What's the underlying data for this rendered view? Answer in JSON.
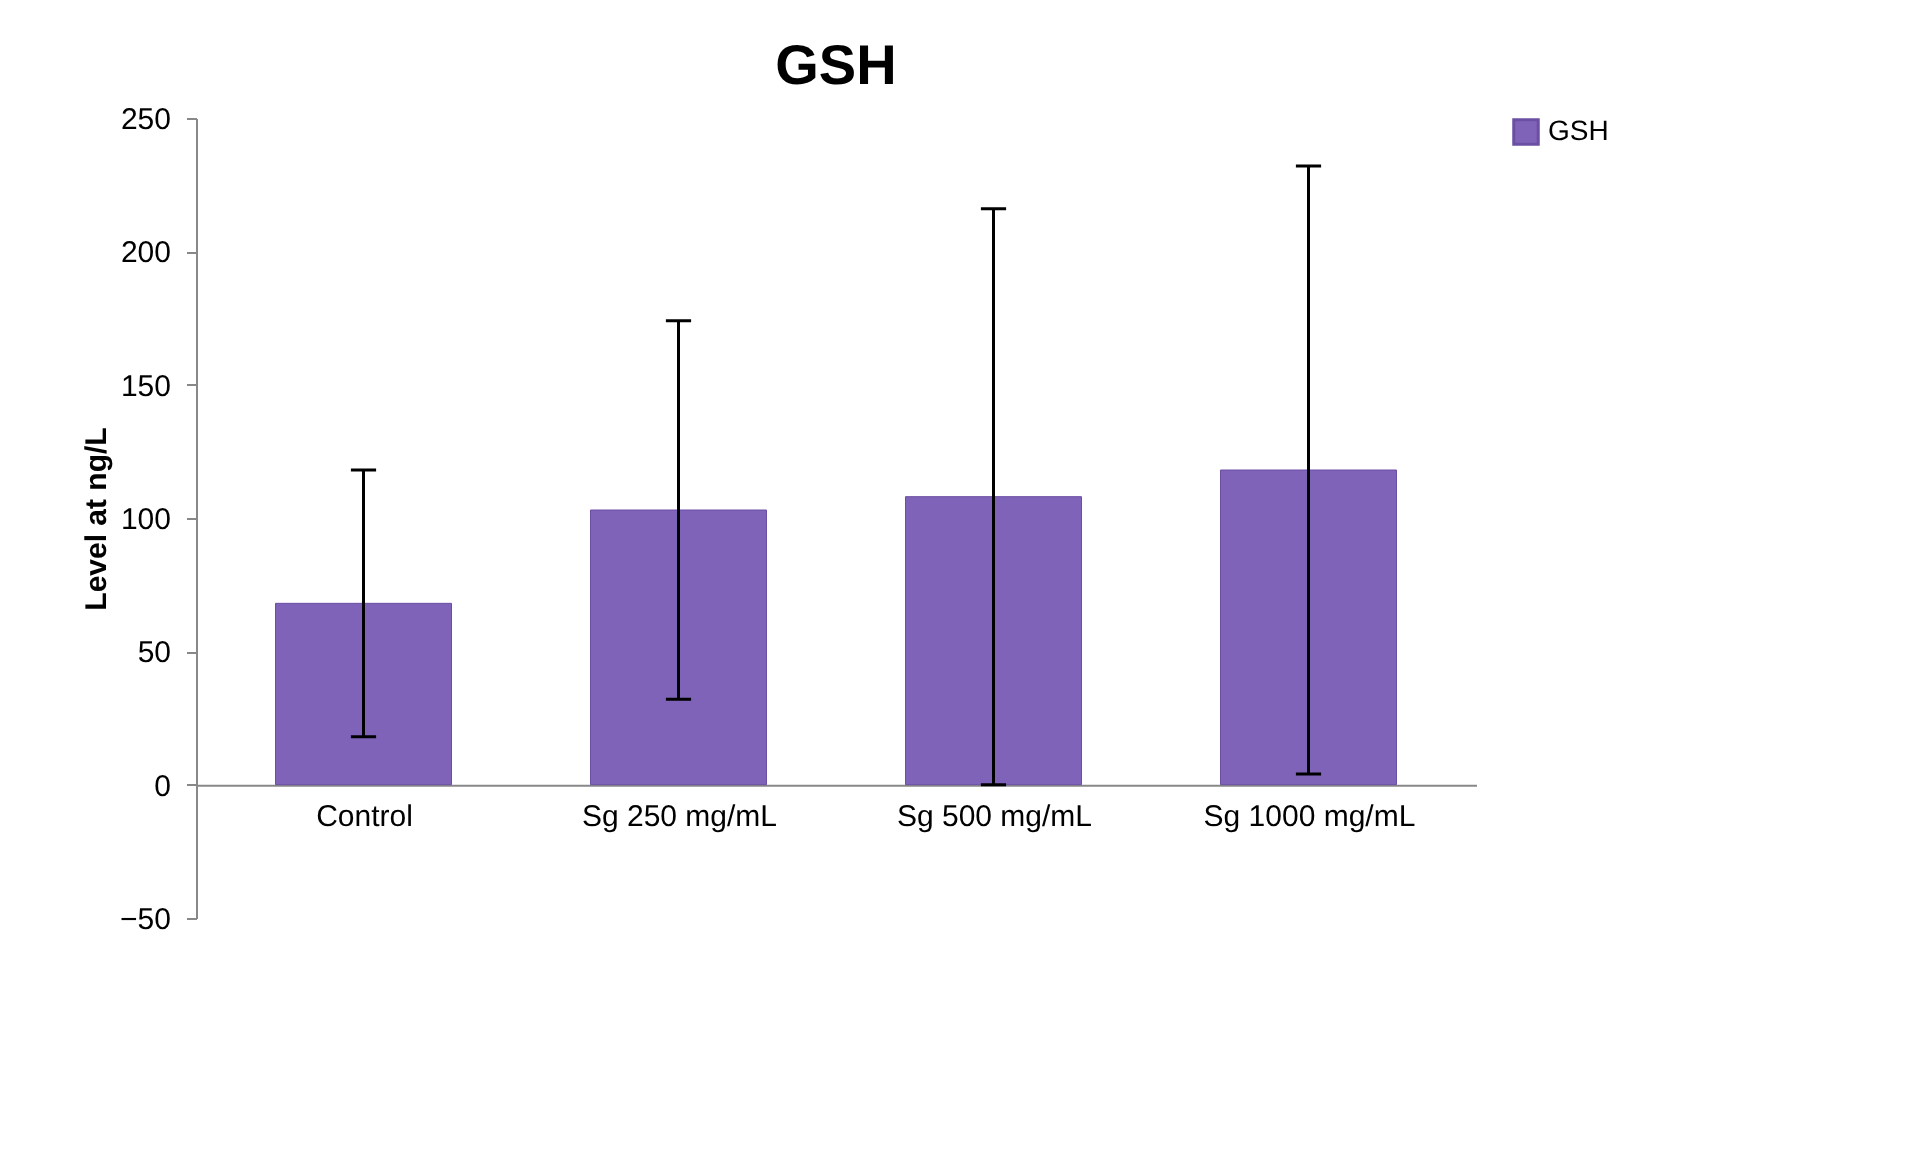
{
  "chart_data": {
    "type": "bar",
    "title": "GSH",
    "ylabel": "Level at ng/L",
    "categories": [
      "Control",
      "Sg 250 mg/mL",
      "Sg 500 mg/mL",
      "Sg 1000 mg/mL"
    ],
    "series": [
      {
        "name": "GSH",
        "color": "#7f63b8",
        "values": [
          68,
          103,
          108,
          118
        ],
        "errors": [
          50,
          71,
          108,
          114
        ]
      }
    ],
    "ylim": [
      -50,
      250
    ],
    "yticks": [
      -50,
      0,
      50,
      100,
      150,
      200,
      250
    ],
    "grid": false,
    "legend": "right"
  }
}
